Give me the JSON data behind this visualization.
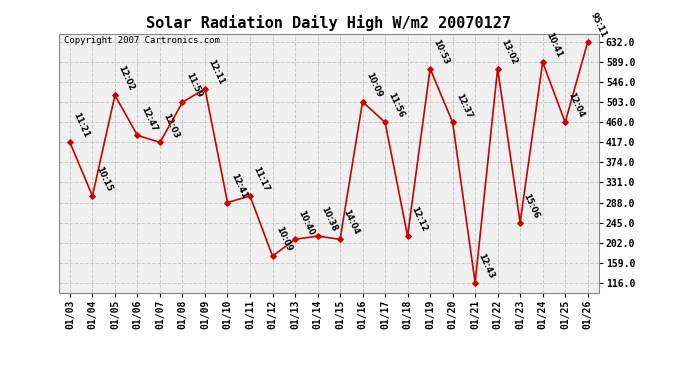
{
  "title": "Solar Radiation Daily High W/m2 20070127",
  "copyright_text": "Copyright 2007 Cartronics.com",
  "dates": [
    "01/03",
    "01/04",
    "01/05",
    "01/06",
    "01/07",
    "01/08",
    "01/09",
    "01/10",
    "01/11",
    "01/12",
    "01/13",
    "01/14",
    "01/15",
    "01/16",
    "01/17",
    "01/18",
    "01/19",
    "01/20",
    "01/21",
    "01/22",
    "01/23",
    "01/24",
    "01/25",
    "01/26"
  ],
  "values": [
    417,
    302,
    518,
    432,
    417,
    503,
    532,
    288,
    302,
    173,
    209,
    216,
    209,
    504,
    460,
    216,
    575,
    460,
    116,
    575,
    245,
    589,
    460,
    632
  ],
  "labels": [
    "11:21",
    "10:15",
    "12:02",
    "12:47",
    "12:03",
    "11:59",
    "12:11",
    "12:41",
    "11:17",
    "10:09",
    "10:40",
    "10:38",
    "14:04",
    "10:09",
    "11:56",
    "12:12",
    "10:53",
    "12:37",
    "12:43",
    "13:02",
    "15:06",
    "10:41",
    "12:04",
    "95:11"
  ],
  "line_color": "#cc0000",
  "marker_color": "#cc0000",
  "grid_color": "#c8c8c8",
  "background_color": "#ffffff",
  "plot_bg_color": "#f0f0f0",
  "yticks": [
    116.0,
    159.0,
    202.0,
    245.0,
    288.0,
    331.0,
    374.0,
    417.0,
    460.0,
    503.0,
    546.0,
    589.0,
    632.0
  ],
  "ylim": [
    95,
    650
  ],
  "title_fontsize": 11,
  "label_fontsize": 6,
  "tick_fontsize": 7,
  "copyright_fontsize": 6.5
}
